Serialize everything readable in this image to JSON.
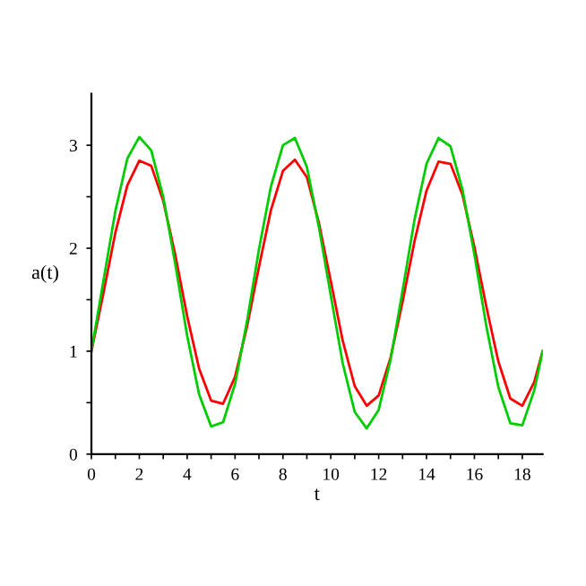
{
  "chart_data": {
    "type": "line",
    "xlabel": "t",
    "ylabel": "a(t)",
    "x": [
      0,
      0.5,
      1,
      1.5,
      2,
      2.5,
      3,
      3.5,
      4,
      4.5,
      5,
      5.5,
      6,
      6.5,
      7,
      7.5,
      8,
      8.5,
      9,
      9.5,
      10,
      10.5,
      11,
      11.5,
      12,
      12.5,
      13,
      13.5,
      14,
      14.5,
      15,
      15.5,
      16,
      16.5,
      17,
      17.5,
      18,
      18.5,
      18.85
    ],
    "series": [
      {
        "color": "#ff0000",
        "values": [
          1.0,
          1.56,
          2.15,
          2.61,
          2.85,
          2.8,
          2.46,
          1.94,
          1.34,
          0.83,
          0.52,
          0.49,
          0.75,
          1.24,
          1.82,
          2.37,
          2.75,
          2.86,
          2.69,
          2.25,
          1.68,
          1.1,
          0.66,
          0.47,
          0.57,
          0.94,
          1.48,
          2.07,
          2.56,
          2.84,
          2.82,
          2.52,
          2.01,
          1.43,
          0.9,
          0.54,
          0.47,
          0.7,
          1.0
        ]
      },
      {
        "color": "#00cc00",
        "values": [
          1.0,
          1.68,
          2.36,
          2.87,
          3.08,
          2.95,
          2.5,
          1.85,
          1.15,
          0.58,
          0.27,
          0.31,
          0.68,
          1.29,
          1.99,
          2.6,
          3.0,
          3.07,
          2.79,
          2.21,
          1.54,
          0.88,
          0.41,
          0.25,
          0.43,
          0.92,
          1.59,
          2.28,
          2.82,
          3.07,
          2.99,
          2.57,
          1.94,
          1.24,
          0.65,
          0.3,
          0.28,
          0.62,
          1.0
        ]
      }
    ],
    "xlim": [
      0,
      18.85
    ],
    "ylim": [
      0,
      3.5
    ],
    "xticks": [
      0,
      {
        "value": 1,
        "label": null
      },
      2,
      {
        "value": 3,
        "label": null
      },
      4,
      {
        "value": 5,
        "label": null
      },
      6,
      {
        "value": 7,
        "label": null
      },
      8,
      {
        "value": 9,
        "label": null
      },
      10,
      {
        "value": 11,
        "label": null
      },
      12,
      {
        "value": 13,
        "label": null
      },
      14,
      {
        "value": 15,
        "label": null
      },
      16,
      {
        "value": 17,
        "label": null
      },
      18
    ],
    "yticks": [
      0,
      {
        "value": 0.5,
        "label": null
      },
      1,
      {
        "value": 1.5,
        "label": null
      },
      2,
      {
        "value": 2.5,
        "label": null
      },
      3
    ],
    "marker": "none",
    "line_style": "solid",
    "grid": false,
    "legend": false
  }
}
